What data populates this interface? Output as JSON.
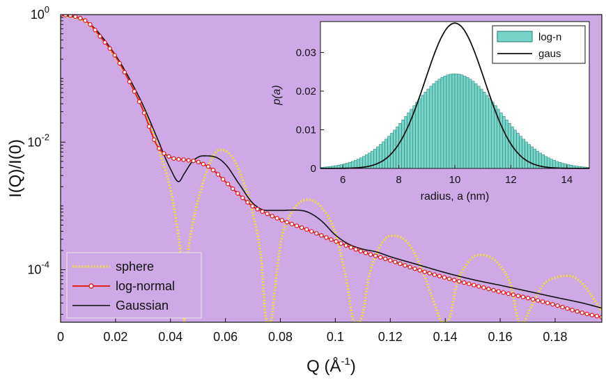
{
  "chart_data": [
    {
      "type": "line",
      "log_y": true,
      "xlabel_main": "Q (Å",
      "xlabel_exp": "-1",
      "xlabel_close": ")",
      "ylabel": "I(Q)/I(0)",
      "xlim": [
        0,
        0.197
      ],
      "ylim": [
        1.5e-05,
        1
      ],
      "background": "#cfa8e6",
      "x_ticks": [
        0,
        0.02,
        0.04,
        0.06,
        0.08,
        0.1,
        0.12,
        0.14,
        0.16,
        0.18
      ],
      "x_tick_labels": [
        "0",
        "0.02",
        "0.04",
        "0.06",
        "0.08",
        "0.1",
        "0.12",
        "0.14",
        "0.16",
        "0.18"
      ],
      "y_ticks": [
        {
          "value": 1,
          "base": "10",
          "exp": "0"
        },
        {
          "value": 0.01,
          "base": "10",
          "exp": "-2"
        },
        {
          "value": 0.0001,
          "base": "10",
          "exp": "-4"
        }
      ],
      "legend_position": "bottom-left",
      "series": [
        {
          "name": "sphere",
          "style": "yellow dotted",
          "color": "#f2dc3c",
          "x": [
            0.0,
            0.01,
            0.02,
            0.03,
            0.035,
            0.04,
            0.042,
            0.044,
            0.045,
            0.046,
            0.048,
            0.05,
            0.055,
            0.058,
            0.062,
            0.066,
            0.07,
            0.073,
            0.075,
            0.0765,
            0.078,
            0.08,
            0.085,
            0.09,
            0.095,
            0.1,
            0.104,
            0.107,
            0.1085,
            0.11,
            0.112,
            0.116,
            0.12,
            0.124,
            0.128,
            0.132,
            0.136,
            0.139,
            0.1405,
            0.142,
            0.144,
            0.148,
            0.152,
            0.156,
            0.16,
            0.164,
            0.167,
            0.1685,
            0.17,
            0.172,
            0.176,
            0.18,
            0.185,
            0.19,
            0.194,
            0.197
          ],
          "y": [
            1.0,
            0.72,
            0.21,
            0.035,
            0.0095,
            0.0018,
            0.0006,
            0.00012,
            1.5e-05,
            0.00012,
            0.0005,
            0.0012,
            0.0055,
            0.0076,
            0.0062,
            0.0028,
            0.00075,
            0.00015,
            1.5e-05,
            1.5e-05,
            5e-05,
            0.00025,
            0.0009,
            0.00125,
            0.00095,
            0.00038,
            7e-05,
            1.5e-05,
            1.5e-05,
            2e-05,
            7e-05,
            0.00022,
            0.00034,
            0.00032,
            0.00021,
            9e-05,
            3e-05,
            1.5e-05,
            1.5e-05,
            2e-05,
            5.5e-05,
            0.000125,
            0.00017,
            0.00016,
            0.000115,
            5.5e-05,
            1.5e-05,
            1.5e-05,
            2e-05,
            3e-05,
            6e-05,
            7.5e-05,
            8e-05,
            6e-05,
            3.5e-05,
            2.2e-05
          ]
        },
        {
          "name": "log-normal",
          "style": "red line with open circles",
          "color": "#e0201c",
          "x": [
            0.0,
            0.005,
            0.01,
            0.015,
            0.02,
            0.025,
            0.03,
            0.035,
            0.04,
            0.045,
            0.05,
            0.055,
            0.06,
            0.065,
            0.07,
            0.075,
            0.08,
            0.09,
            0.1,
            0.11,
            0.12,
            0.13,
            0.14,
            0.15,
            0.16,
            0.17,
            0.18,
            0.19,
            0.197
          ],
          "y": [
            1.0,
            0.94,
            0.75,
            0.42,
            0.22,
            0.09,
            0.032,
            0.009,
            0.0058,
            0.0053,
            0.0049,
            0.0038,
            0.0024,
            0.0015,
            0.00098,
            0.00076,
            0.00061,
            0.00042,
            0.00028,
            0.00019,
            0.00014,
            0.0001,
            7.5e-05,
            5.8e-05,
            4.5e-05,
            3.6e-05,
            2.8e-05,
            2.1e-05,
            1.8e-05
          ]
        },
        {
          "name": "Gaussian",
          "style": "black solid",
          "color": "#111111",
          "x": [
            0.0,
            0.01,
            0.02,
            0.025,
            0.03,
            0.035,
            0.04,
            0.043,
            0.045,
            0.048,
            0.052,
            0.056,
            0.06,
            0.065,
            0.07,
            0.075,
            0.08,
            0.085,
            0.09,
            0.095,
            0.1,
            0.105,
            0.11,
            0.115,
            0.12,
            0.13,
            0.14,
            0.15,
            0.16,
            0.17,
            0.18,
            0.19,
            0.197
          ],
          "y": [
            1.0,
            0.75,
            0.23,
            0.1,
            0.038,
            0.012,
            0.0038,
            0.0024,
            0.0032,
            0.005,
            0.0061,
            0.0059,
            0.0045,
            0.0022,
            0.0011,
            0.00085,
            0.00085,
            0.00086,
            0.0008,
            0.00058,
            0.00035,
            0.00025,
            0.00021,
            0.00019,
            0.00016,
            0.00012,
            9e-05,
            7e-05,
            5.7e-05,
            4.6e-05,
            3.7e-05,
            3e-05,
            2.5e-05
          ]
        }
      ]
    },
    {
      "type": "bar",
      "inset": true,
      "xlabel": "radius, a (nm)",
      "ylabel": "p(a)",
      "xlim": [
        5.2,
        14.8
      ],
      "ylim": [
        0,
        0.038
      ],
      "x_ticks": [
        6,
        8,
        10,
        12,
        14
      ],
      "x_tick_labels": [
        "6",
        "8",
        "10",
        "12",
        "14"
      ],
      "y_ticks": [
        0,
        0.01,
        0.02,
        0.03
      ],
      "y_tick_labels": [
        "0",
        "0.01",
        "0.02",
        "0.03"
      ],
      "legend_position": "top-right",
      "series": [
        {
          "name": "log-n",
          "kind": "histogram",
          "color": "#78d4c8",
          "edge_color": "#1f7a70",
          "bin_width": 0.1,
          "mean": 10,
          "sigma": 1.6,
          "peak": 0.0245
        },
        {
          "name": "gaus",
          "kind": "line",
          "color": "#111111",
          "mean": 10,
          "sigma": 1.06,
          "peak": 0.0376
        }
      ]
    }
  ]
}
